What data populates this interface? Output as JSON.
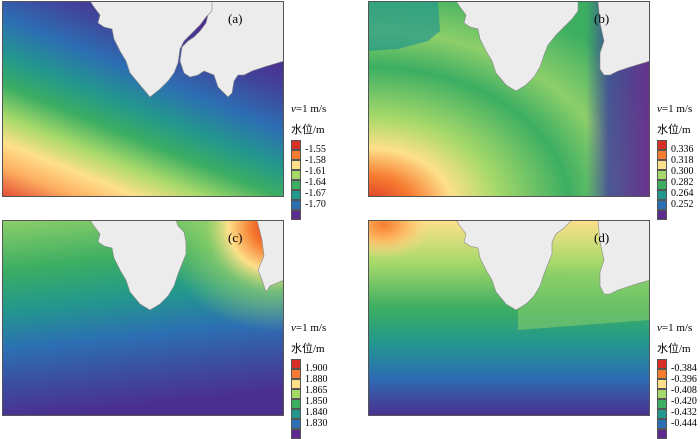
{
  "legend_title": "水位/m",
  "velocity_scale": {
    "symbol": "v",
    "text": "=1 m/s"
  },
  "palette": [
    "#d73027",
    "#f67c30",
    "#fee08b",
    "#a6d96a",
    "#3cae62",
    "#23988c",
    "#2c6fb3",
    "#5b2c8e"
  ],
  "land_color": "#ececec",
  "panels": [
    {
      "id": "a",
      "label": "(a)",
      "ticks": [
        "-1.55",
        "-1.58",
        "-1.61",
        "-1.64",
        "-1.67",
        "-1.70"
      ]
    },
    {
      "id": "b",
      "label": "(b)",
      "ticks": [
        "0.336",
        "0.318",
        "0.300",
        "0.282",
        "0.264",
        "0.252"
      ]
    },
    {
      "id": "c",
      "label": "(c)",
      "ticks": [
        "1.900",
        "1.880",
        "1.865",
        "1.850",
        "1.840",
        "1.830"
      ]
    },
    {
      "id": "d",
      "label": "(d)",
      "ticks": [
        "-0.384",
        "-0.396",
        "-0.408",
        "-0.420",
        "-0.432",
        "-0.444"
      ]
    }
  ]
}
